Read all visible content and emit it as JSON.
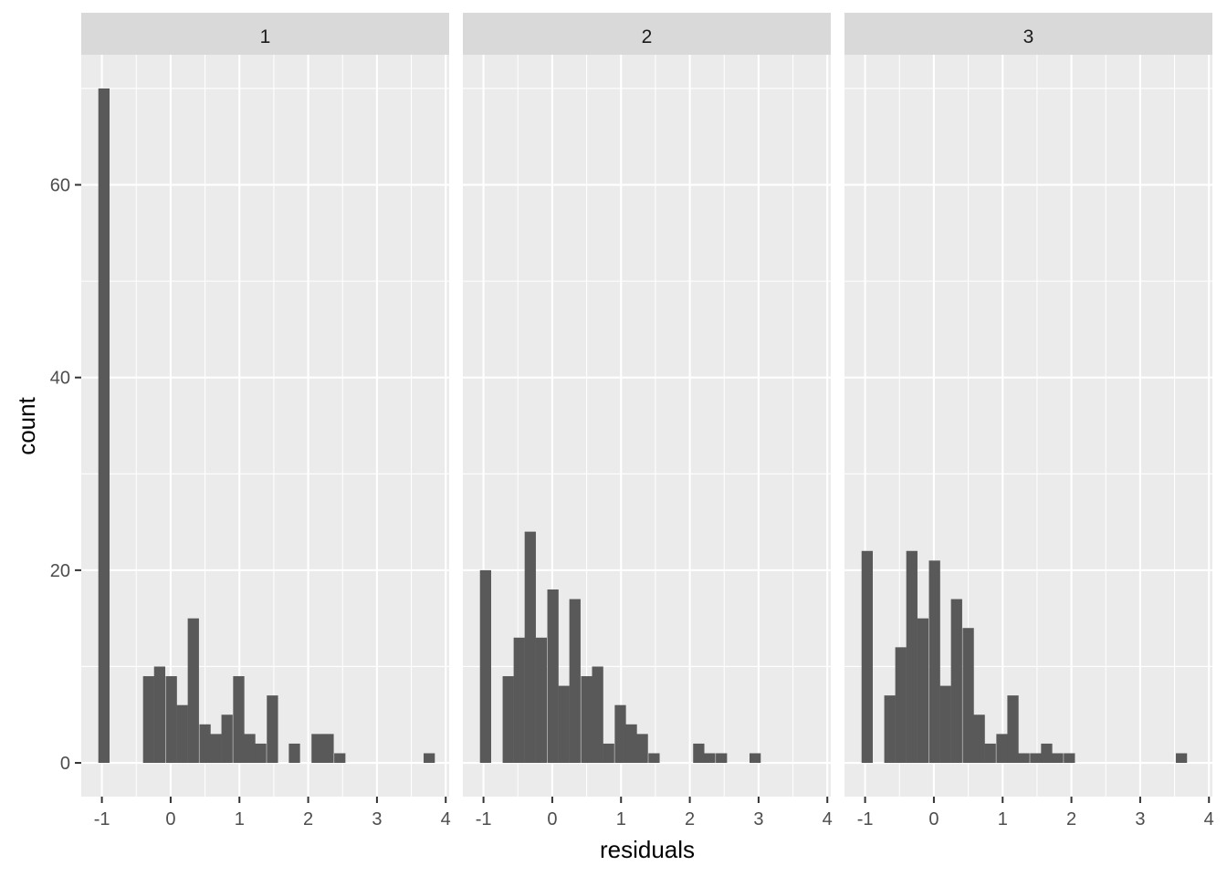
{
  "chart_data": {
    "type": "bar",
    "xlabel": "residuals",
    "ylabel": "count",
    "xlim": [
      -1.3,
      4.05
    ],
    "ylim": [
      -3.5,
      73.5
    ],
    "x_ticks": [
      -1,
      0,
      1,
      2,
      3,
      4
    ],
    "x_tick_labels": [
      "-1",
      "0",
      "1",
      "2",
      "3",
      "4"
    ],
    "y_ticks": [
      0,
      20,
      40,
      60
    ],
    "y_tick_labels": [
      "0",
      "20",
      "40",
      "60"
    ],
    "bin_width": 0.163,
    "grid": true,
    "facets": [
      {
        "label": "1",
        "bins": [
          {
            "x": -0.97,
            "count": 70
          },
          {
            "x": -0.32,
            "count": 9
          },
          {
            "x": -0.16,
            "count": 10
          },
          {
            "x": 0.01,
            "count": 9
          },
          {
            "x": 0.17,
            "count": 6
          },
          {
            "x": 0.33,
            "count": 15
          },
          {
            "x": 0.5,
            "count": 4
          },
          {
            "x": 0.66,
            "count": 3
          },
          {
            "x": 0.82,
            "count": 5
          },
          {
            "x": 0.99,
            "count": 9
          },
          {
            "x": 1.15,
            "count": 3
          },
          {
            "x": 1.31,
            "count": 2
          },
          {
            "x": 1.48,
            "count": 7
          },
          {
            "x": 1.8,
            "count": 2
          },
          {
            "x": 2.13,
            "count": 3
          },
          {
            "x": 2.29,
            "count": 3
          },
          {
            "x": 2.46,
            "count": 1
          },
          {
            "x": 3.76,
            "count": 1
          }
        ]
      },
      {
        "label": "2",
        "bins": [
          {
            "x": -0.97,
            "count": 20
          },
          {
            "x": -0.64,
            "count": 9
          },
          {
            "x": -0.48,
            "count": 13
          },
          {
            "x": -0.32,
            "count": 24
          },
          {
            "x": -0.16,
            "count": 13
          },
          {
            "x": 0.01,
            "count": 18
          },
          {
            "x": 0.17,
            "count": 8
          },
          {
            "x": 0.33,
            "count": 17
          },
          {
            "x": 0.5,
            "count": 9
          },
          {
            "x": 0.66,
            "count": 10
          },
          {
            "x": 0.82,
            "count": 2
          },
          {
            "x": 0.99,
            "count": 6
          },
          {
            "x": 1.15,
            "count": 4
          },
          {
            "x": 1.31,
            "count": 3
          },
          {
            "x": 1.48,
            "count": 1
          },
          {
            "x": 2.13,
            "count": 2
          },
          {
            "x": 2.29,
            "count": 1
          },
          {
            "x": 2.46,
            "count": 1
          },
          {
            "x": 2.95,
            "count": 1
          }
        ]
      },
      {
        "label": "3",
        "bins": [
          {
            "x": -0.97,
            "count": 22
          },
          {
            "x": -0.64,
            "count": 7
          },
          {
            "x": -0.48,
            "count": 12
          },
          {
            "x": -0.32,
            "count": 22
          },
          {
            "x": -0.16,
            "count": 15
          },
          {
            "x": 0.01,
            "count": 21
          },
          {
            "x": 0.17,
            "count": 8
          },
          {
            "x": 0.33,
            "count": 17
          },
          {
            "x": 0.5,
            "count": 14
          },
          {
            "x": 0.66,
            "count": 5
          },
          {
            "x": 0.82,
            "count": 2
          },
          {
            "x": 0.99,
            "count": 3
          },
          {
            "x": 1.15,
            "count": 7
          },
          {
            "x": 1.31,
            "count": 1
          },
          {
            "x": 1.48,
            "count": 1
          },
          {
            "x": 1.64,
            "count": 2
          },
          {
            "x": 1.8,
            "count": 1
          },
          {
            "x": 1.97,
            "count": 1
          },
          {
            "x": 3.6,
            "count": 1
          }
        ]
      }
    ]
  }
}
